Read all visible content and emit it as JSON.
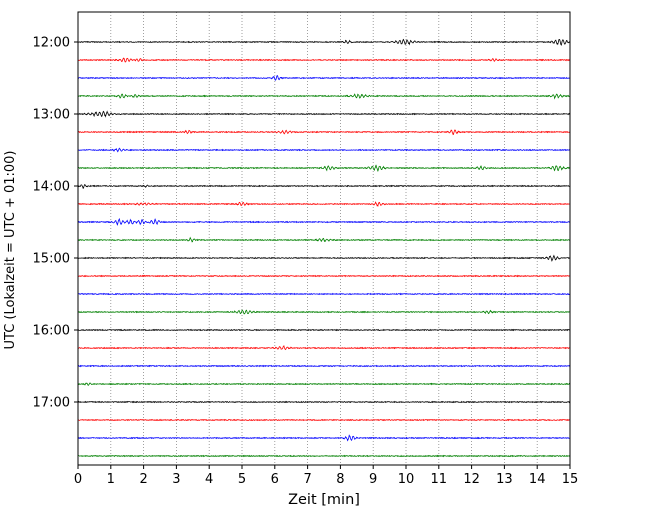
{
  "chart_data": {
    "type": "line",
    "subtype": "seismogram-dayplot",
    "title": "",
    "xlabel": "Zeit  [min]",
    "ylabel": "UTC (Lokalzeit = UTC + 01:00)",
    "xlim": [
      0,
      15
    ],
    "xticks": [
      0,
      1,
      2,
      3,
      4,
      5,
      6,
      7,
      8,
      9,
      10,
      11,
      12,
      13,
      14,
      15
    ],
    "grid": "vertical-dotted",
    "trace_interval_min": 15,
    "colors_cycle": [
      "#000000",
      "#ff0000",
      "#0000ff",
      "#008000"
    ],
    "hour_labels": [
      "12:00",
      "13:00",
      "14:00",
      "15:00",
      "16:00",
      "17:00"
    ],
    "traces": [
      {
        "time": "12:00",
        "label": "12:00",
        "color": "#000000",
        "events": [
          {
            "x": 8.2,
            "a": 1.4,
            "w": 0.12
          },
          {
            "x": 9.95,
            "a": 2.3,
            "w": 0.3
          },
          {
            "x": 14.7,
            "a": 2.6,
            "w": 0.22
          }
        ]
      },
      {
        "time": "12:15",
        "label": "",
        "color": "#ff0000",
        "events": [
          {
            "x": 1.45,
            "a": 2.0,
            "w": 0.18
          },
          {
            "x": 1.85,
            "a": 1.4,
            "w": 0.12
          },
          {
            "x": 12.7,
            "a": 1.0,
            "w": 0.15
          }
        ]
      },
      {
        "time": "12:30",
        "label": "",
        "color": "#0000ff",
        "events": [
          {
            "x": 6.05,
            "a": 2.4,
            "w": 0.12
          }
        ]
      },
      {
        "time": "12:45",
        "label": "",
        "color": "#008000",
        "events": [
          {
            "x": 1.35,
            "a": 1.9,
            "w": 0.15
          },
          {
            "x": 1.75,
            "a": 1.5,
            "w": 0.12
          },
          {
            "x": 8.55,
            "a": 1.7,
            "w": 0.25
          },
          {
            "x": 14.6,
            "a": 2.0,
            "w": 0.18
          }
        ]
      },
      {
        "time": "13:00",
        "label": "13:00",
        "color": "#000000",
        "events": [
          {
            "x": 0.7,
            "a": 2.4,
            "w": 0.35
          }
        ]
      },
      {
        "time": "13:15",
        "label": "",
        "color": "#ff0000",
        "events": [
          {
            "x": 3.35,
            "a": 1.7,
            "w": 0.1
          },
          {
            "x": 6.3,
            "a": 1.5,
            "w": 0.2
          },
          {
            "x": 11.45,
            "a": 2.8,
            "w": 0.12
          }
        ]
      },
      {
        "time": "13:30",
        "label": "",
        "color": "#0000ff",
        "events": [
          {
            "x": 1.25,
            "a": 1.3,
            "w": 0.2
          }
        ]
      },
      {
        "time": "13:45",
        "label": "",
        "color": "#008000",
        "events": [
          {
            "x": 7.65,
            "a": 2.0,
            "w": 0.2
          },
          {
            "x": 9.1,
            "a": 2.3,
            "w": 0.25
          },
          {
            "x": 12.3,
            "a": 1.8,
            "w": 0.15
          },
          {
            "x": 14.6,
            "a": 2.3,
            "w": 0.2
          }
        ]
      },
      {
        "time": "14:00",
        "label": "14:00",
        "color": "#000000",
        "events": [
          {
            "x": 0.15,
            "a": 1.8,
            "w": 0.1
          },
          {
            "x": 2.05,
            "a": 0.9,
            "w": 0.12
          }
        ]
      },
      {
        "time": "14:15",
        "label": "",
        "color": "#ff0000",
        "events": [
          {
            "x": 2.0,
            "a": 1.0,
            "w": 0.3
          },
          {
            "x": 5.0,
            "a": 1.6,
            "w": 0.15
          },
          {
            "x": 9.15,
            "a": 1.8,
            "w": 0.15
          }
        ]
      },
      {
        "time": "14:30",
        "label": "",
        "color": "#0000ff",
        "events": [
          {
            "x": 1.25,
            "a": 2.6,
            "w": 0.15
          },
          {
            "x": 1.6,
            "a": 2.3,
            "w": 0.12
          },
          {
            "x": 1.95,
            "a": 2.1,
            "w": 0.12
          },
          {
            "x": 2.35,
            "a": 2.4,
            "w": 0.15
          }
        ]
      },
      {
        "time": "14:45",
        "label": "",
        "color": "#008000",
        "events": [
          {
            "x": 3.45,
            "a": 1.9,
            "w": 0.1
          },
          {
            "x": 7.5,
            "a": 1.5,
            "w": 0.2
          }
        ]
      },
      {
        "time": "15:00",
        "label": "15:00",
        "color": "#000000",
        "events": [
          {
            "x": 14.45,
            "a": 2.3,
            "w": 0.2
          }
        ]
      },
      {
        "time": "15:15",
        "label": "",
        "color": "#ff0000",
        "events": []
      },
      {
        "time": "15:30",
        "label": "",
        "color": "#0000ff",
        "events": []
      },
      {
        "time": "15:45",
        "label": "",
        "color": "#008000",
        "events": [
          {
            "x": 5.05,
            "a": 2.0,
            "w": 0.25
          },
          {
            "x": 12.5,
            "a": 1.3,
            "w": 0.15
          }
        ]
      },
      {
        "time": "16:00",
        "label": "16:00",
        "color": "#000000",
        "events": []
      },
      {
        "time": "16:15",
        "label": "",
        "color": "#ff0000",
        "events": [
          {
            "x": 6.25,
            "a": 1.7,
            "w": 0.2
          }
        ]
      },
      {
        "time": "16:30",
        "label": "",
        "color": "#0000ff",
        "events": []
      },
      {
        "time": "16:45",
        "label": "",
        "color": "#008000",
        "events": [
          {
            "x": 0.3,
            "a": 1.1,
            "w": 0.12
          }
        ]
      },
      {
        "time": "17:00",
        "label": "17:00",
        "color": "#000000",
        "events": []
      },
      {
        "time": "17:15",
        "label": "",
        "color": "#ff0000",
        "events": []
      },
      {
        "time": "17:30",
        "label": "",
        "color": "#0000ff",
        "events": [
          {
            "x": 8.3,
            "a": 3.0,
            "w": 0.15
          }
        ]
      },
      {
        "time": "17:45",
        "label": "",
        "color": "#008000",
        "events": []
      }
    ]
  }
}
